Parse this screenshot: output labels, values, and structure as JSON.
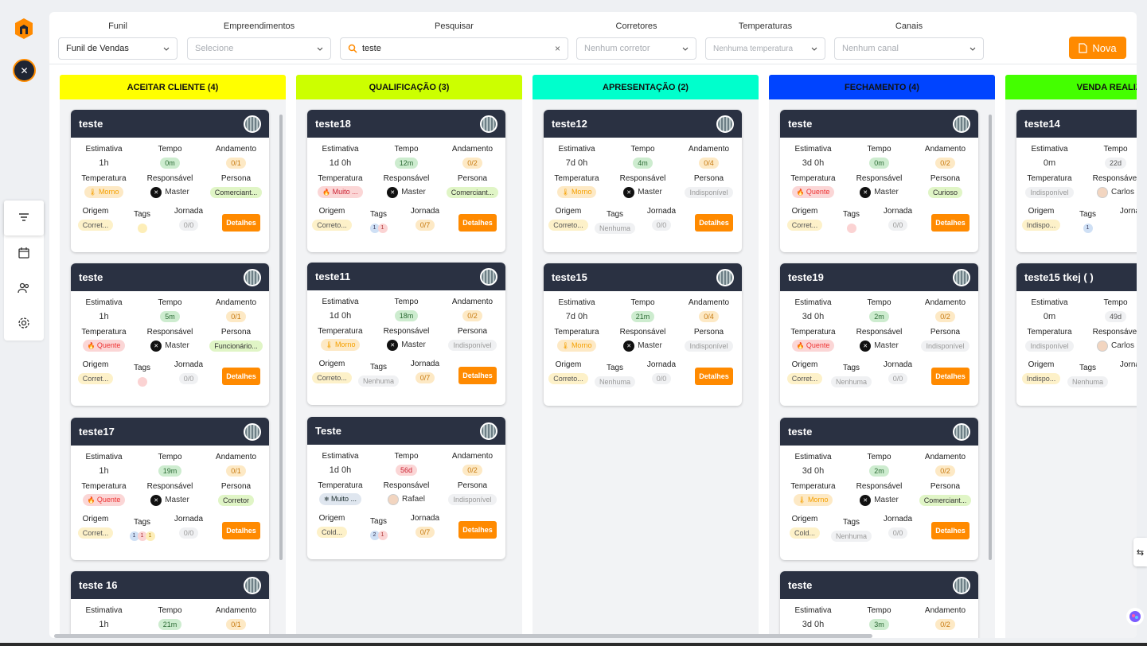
{
  "filters": {
    "funil": {
      "label": "Funil",
      "value": "Funil de Vendas"
    },
    "empreendimentos": {
      "label": "Empreendimentos",
      "placeholder": "Selecione"
    },
    "pesquisar": {
      "label": "Pesquisar",
      "value": "teste"
    },
    "corretores": {
      "label": "Corretores",
      "placeholder": "Nenhum corretor"
    },
    "temperaturas": {
      "label": "Temperaturas",
      "placeholder": "Nenhuma temperatura"
    },
    "canais": {
      "label": "Canais",
      "placeholder": "Nenhum canal"
    },
    "nova_label": "Nova"
  },
  "field_labels": {
    "estimativa": "Estimativa",
    "tempo": "Tempo",
    "andamento": "Andamento",
    "temperatura": "Temperatura",
    "responsavel": "Responsável",
    "persona": "Persona",
    "origem": "Origem",
    "tags": "Tags",
    "jornada": "Jornada",
    "detalhes": "Detalhes"
  },
  "columns": [
    {
      "title": "ACEITAR CLIENTE (4)",
      "color": "#ffff00",
      "cards": [
        {
          "name": "teste",
          "est": "1h",
          "tempo": "0m",
          "tc": "g",
          "and": "0/1",
          "temp": "Morno",
          "tt": "morno",
          "resp": "Master",
          "persona": "Comerciant...",
          "pc": "lg",
          "origem": "Corret...",
          "tags": [
            {
              "n": "",
              "c": "t3"
            }
          ],
          "jornada": "0/0",
          "jc": "plain"
        },
        {
          "name": "teste",
          "est": "1h",
          "tempo": "5m",
          "tc": "g",
          "and": "0/1",
          "temp": "Quente",
          "tt": "quente",
          "resp": "Master",
          "persona": "Funcionário...",
          "pc": "lg",
          "origem": "Corret...",
          "tags": [
            {
              "n": "",
              "c": "t2"
            }
          ],
          "jornada": "0/0",
          "jc": "plain"
        },
        {
          "name": "teste17",
          "est": "1h",
          "tempo": "19m",
          "tc": "g",
          "and": "0/1",
          "temp": "Quente",
          "tt": "quente",
          "resp": "Master",
          "persona": "Corretor",
          "pc": "lg",
          "origem": "Corret...",
          "tags": [
            {
              "n": "1",
              "c": "t1"
            },
            {
              "n": "1",
              "c": "t2"
            },
            {
              "n": "1",
              "c": "t3"
            }
          ],
          "jornada": "0/0",
          "jc": "plain"
        },
        {
          "name": "teste 16",
          "est": "1h",
          "tempo": "21m",
          "tc": "g",
          "and": "0/1",
          "partial": true
        }
      ]
    },
    {
      "title": "QUALIFICAÇÃO (3)",
      "color": "#ccff00",
      "cards": [
        {
          "name": "teste18",
          "est": "1d 0h",
          "tempo": "12m",
          "tc": "g",
          "and": "0/2",
          "temp": "Muito ...",
          "tt": "muito",
          "resp": "Master",
          "persona": "Comerciant...",
          "pc": "lg",
          "origem": "Correto...",
          "tags": [
            {
              "n": "1",
              "c": "t1"
            },
            {
              "n": "1",
              "c": "t2"
            }
          ],
          "jornada": "0/7",
          "jc": "o"
        },
        {
          "name": "teste11",
          "est": "1d 0h",
          "tempo": "18m",
          "tc": "g",
          "and": "0/2",
          "temp": "Morno",
          "tt": "morno",
          "resp": "Master",
          "persona": "Indisponível",
          "pc": "gr",
          "origem": "Correto...",
          "tags": [],
          "tagtext": "Nenhuma",
          "jornada": "0/7",
          "jc": "o"
        },
        {
          "name": "Teste",
          "est": "1d 0h",
          "tempo": "56d",
          "tc": "r",
          "and": "0/2",
          "temp": "Muito ...",
          "tt": "frio",
          "resp": "Rafael",
          "rface": true,
          "persona": "Indisponível",
          "pc": "gr",
          "origem": "Cold...",
          "tags": [
            {
              "n": "2",
              "c": "t1"
            },
            {
              "n": "1",
              "c": "t2"
            }
          ],
          "jornada": "0/7",
          "jc": "o"
        }
      ]
    },
    {
      "title": "APRESENTAÇÃO (2)",
      "color": "#00ffcc",
      "cards": [
        {
          "name": "teste12",
          "est": "7d 0h",
          "tempo": "4m",
          "tc": "g",
          "and": "0/4",
          "temp": "Morno",
          "tt": "morno",
          "resp": "Master",
          "persona": "Indisponível",
          "pc": "gr",
          "origem": "Correto...",
          "tags": [],
          "tagtext": "Nenhuma",
          "jornada": "0/0",
          "jc": "plain"
        },
        {
          "name": "teste15",
          "est": "7d 0h",
          "tempo": "21m",
          "tc": "g",
          "and": "0/4",
          "temp": "Morno",
          "tt": "morno",
          "resp": "Master",
          "persona": "Indisponível",
          "pc": "gr",
          "origem": "Correto...",
          "tags": [],
          "tagtext": "Nenhuma",
          "jornada": "0/0",
          "jc": "plain"
        }
      ]
    },
    {
      "title": "FECHAMENTO (4)",
      "color": "#0044ff",
      "cards": [
        {
          "name": "teste",
          "est": "3d 0h",
          "tempo": "0m",
          "tc": "g",
          "and": "0/2",
          "temp": "Quente",
          "tt": "quente",
          "resp": "Master",
          "persona": "Curioso",
          "pc": "lg",
          "origem": "Corret...",
          "tags": [
            {
              "n": "",
              "c": "t2"
            }
          ],
          "jornada": "0/0",
          "jc": "plain"
        },
        {
          "name": "teste19",
          "est": "3d 0h",
          "tempo": "2m",
          "tc": "g",
          "and": "0/2",
          "temp": "Quente",
          "tt": "quente",
          "resp": "Master",
          "persona": "Indisponível",
          "pc": "gr",
          "origem": "Corret...",
          "tags": [],
          "tagtext": "Nenhuma",
          "jornada": "0/0",
          "jc": "plain"
        },
        {
          "name": "teste",
          "est": "3d 0h",
          "tempo": "2m",
          "tc": "g",
          "and": "0/2",
          "temp": "Morno",
          "tt": "morno",
          "resp": "Master",
          "persona": "Comerciant...",
          "pc": "lg",
          "origem": "Cold...",
          "tags": [],
          "tagtext": "Nenhuma",
          "jornada": "0/0",
          "jc": "plain"
        },
        {
          "name": "teste",
          "est": "3d 0h",
          "tempo": "3m",
          "tc": "g",
          "and": "0/2",
          "partial": true
        }
      ]
    },
    {
      "title": "VENDA REALIZADA",
      "color": "#44ff00",
      "cards": [
        {
          "name": "teste14",
          "est": "0m",
          "tempo": "22d",
          "tc": "gr2",
          "and": "",
          "temp": "Indisponível",
          "tt": "na",
          "resp": "Carlos",
          "rface": true,
          "persona": "",
          "pc": "gr",
          "origem": "Indispo...",
          "tags": [
            {
              "n": "1",
              "c": "t1"
            }
          ],
          "jornada": "",
          "jc": "plain"
        },
        {
          "name": "teste15 tkej ( )",
          "est": "0m",
          "tempo": "49d",
          "tc": "gr2",
          "and": "",
          "temp": "Indisponível",
          "tt": "na",
          "resp": "Carlos",
          "rface": true,
          "persona": "",
          "pc": "gr",
          "origem": "Indispo...",
          "tags": [],
          "tagtext": "Nenhuma",
          "jornada": "",
          "jc": "plain"
        }
      ]
    }
  ]
}
